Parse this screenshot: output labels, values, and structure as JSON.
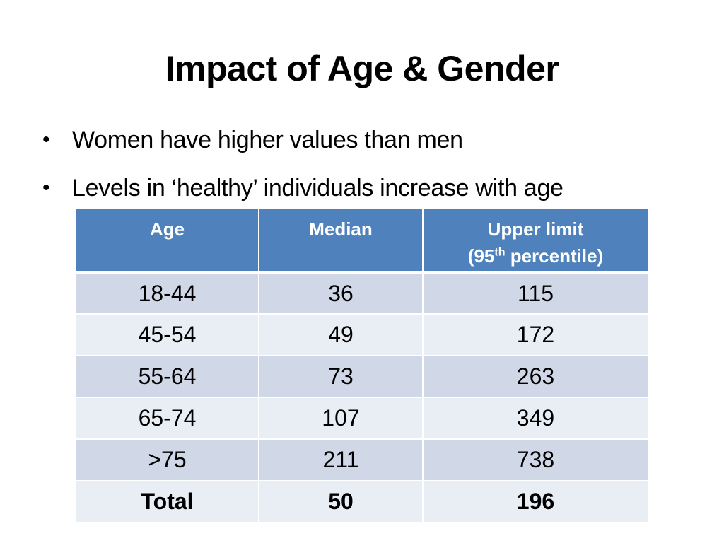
{
  "slide": {
    "title": "Impact of Age & Gender",
    "bullets": [
      {
        "symbol": "•",
        "text": "Women have higher values than men"
      },
      {
        "symbol": "•",
        "text": "Levels in ‘healthy’ individuals increase with age"
      }
    ]
  },
  "table": {
    "headers": {
      "age": "Age",
      "median": "Median",
      "upper_line1": "Upper limit",
      "upper_prefix": "(95",
      "upper_sup": "th",
      "upper_suffix": " percentile)"
    },
    "rows": [
      {
        "age": "18-44",
        "median": "36",
        "upper": "115"
      },
      {
        "age": "45-54",
        "median": "49",
        "upper": "172"
      },
      {
        "age": "55-64",
        "median": "73",
        "upper": "263"
      },
      {
        "age": "65-74",
        "median": "107",
        "upper": "349"
      },
      {
        "age": ">75",
        "median": "211",
        "upper": "738"
      }
    ],
    "total": {
      "age": "Total",
      "median": "50",
      "upper": "196"
    }
  },
  "colors": {
    "header_bg": "#4f81bd",
    "row_dark": "#d0d8e8",
    "row_light": "#e9edf4"
  }
}
